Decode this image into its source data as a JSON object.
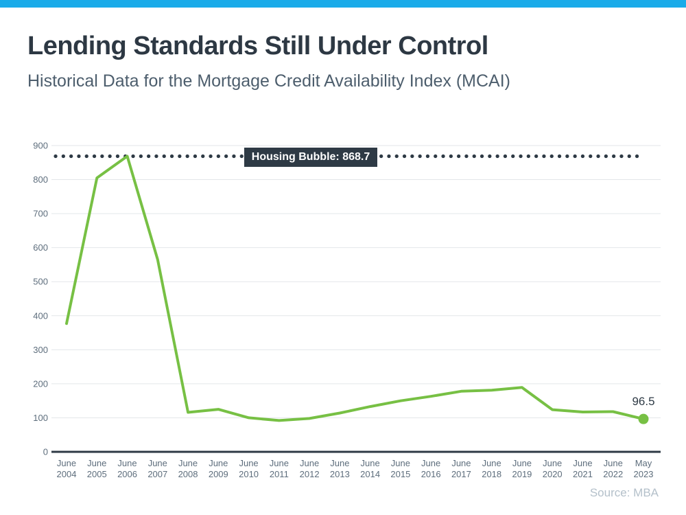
{
  "page": {
    "title": "Lending Standards Still Under Control",
    "subtitle": "Historical Data for the Mortgage Credit Availability Index (MCAI)",
    "source": "Source: MBA",
    "accent_color": "#1aabe9"
  },
  "chart_data": {
    "type": "line",
    "title": "Historical Data for the Mortgage Credit Availability Index (MCAI)",
    "categories": [
      "June 2004",
      "June 2005",
      "June 2006",
      "June 2007",
      "June 2008",
      "June 2009",
      "June 2010",
      "June 2011",
      "June 2012",
      "June 2013",
      "June 2014",
      "June 2015",
      "June 2016",
      "June 2017",
      "June 2018",
      "June 2019",
      "June 2020",
      "June 2021",
      "June 2022",
      "May 2023"
    ],
    "series": [
      {
        "name": "Mortgage Credit Availability Index",
        "values": [
          377,
          805,
          868.7,
          565,
          116,
          125,
          100,
          92,
          98,
          114,
          133,
          150,
          163,
          178,
          181,
          189,
          124,
          117,
          118,
          96.5
        ]
      }
    ],
    "ylim": [
      0,
      900
    ],
    "ytick_step": 100,
    "ytick_labels": [
      "0",
      "100",
      "200",
      "300",
      "400",
      "500",
      "600",
      "700",
      "800",
      "900"
    ],
    "grid": "horizontal",
    "legend": "none",
    "annotations": {
      "bubble_line": {
        "label": "Housing Bubble: 868.7",
        "value": 868.7,
        "style": "dotted"
      },
      "end_point": {
        "label": "96.5",
        "value": 96.5,
        "category": "May 2023",
        "marker": "circle"
      }
    },
    "colors": {
      "line": "#77c044",
      "annotation": "#2e3a45",
      "grid": "#e3e6e9",
      "axis_line": "#2e3a45",
      "axis_text": "#5d6d7c"
    }
  }
}
